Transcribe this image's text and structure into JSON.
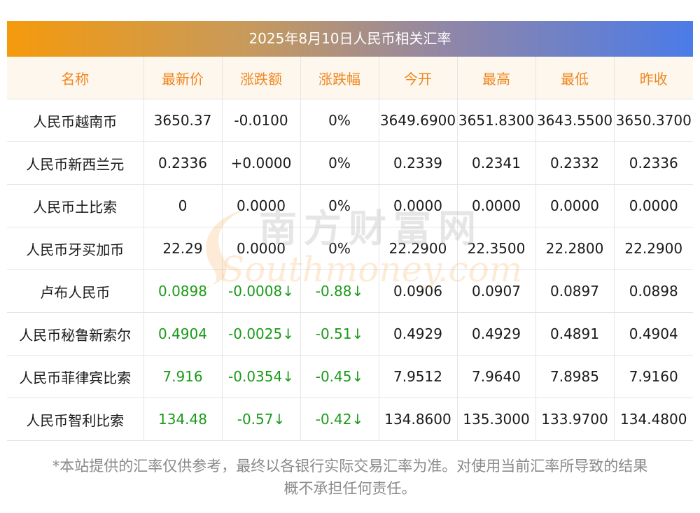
{
  "title": "2025年8月10日人民币相关汇率",
  "watermark": {
    "cn": "南方财富网",
    "en": "Southmoney.com"
  },
  "table": {
    "headers": [
      "名称",
      "最新价",
      "涨跌额",
      "涨跌幅",
      "今开",
      "最高",
      "最低",
      "昨收"
    ],
    "rows": [
      {
        "name": "人民币越南币",
        "latest": "3650.37",
        "change": "-0.0100",
        "change_pct": "0%",
        "open": "3649.6900",
        "high": "3651.8300",
        "low": "3643.5500",
        "prev_close": "3650.3700",
        "trend": "flat"
      },
      {
        "name": "人民币新西兰元",
        "latest": "0.2336",
        "change": "+0.0000",
        "change_pct": "0%",
        "open": "0.2339",
        "high": "0.2341",
        "low": "0.2332",
        "prev_close": "0.2336",
        "trend": "flat"
      },
      {
        "name": "人民币土比索",
        "latest": "0",
        "change": "0.0000",
        "change_pct": "0%",
        "open": "0.0000",
        "high": "0.0000",
        "low": "0.0000",
        "prev_close": "0.0000",
        "trend": "flat"
      },
      {
        "name": "人民币牙买加币",
        "latest": "22.29",
        "change": "0.0000",
        "change_pct": "0%",
        "open": "22.2900",
        "high": "22.3500",
        "low": "22.2800",
        "prev_close": "22.2900",
        "trend": "flat"
      },
      {
        "name": "卢布人民币",
        "latest": "0.0898",
        "change": "-0.0008↓",
        "change_pct": "-0.88↓",
        "open": "0.0906",
        "high": "0.0907",
        "low": "0.0897",
        "prev_close": "0.0898",
        "trend": "down"
      },
      {
        "name": "人民币秘鲁新索尔",
        "latest": "0.4904",
        "change": "-0.0025↓",
        "change_pct": "-0.51↓",
        "open": "0.4929",
        "high": "0.4929",
        "low": "0.4891",
        "prev_close": "0.4904",
        "trend": "down"
      },
      {
        "name": "人民币菲律宾比索",
        "latest": "7.916",
        "change": "-0.0354↓",
        "change_pct": "-0.45↓",
        "open": "7.9512",
        "high": "7.9640",
        "low": "7.8985",
        "prev_close": "7.9160",
        "trend": "down"
      },
      {
        "name": "人民币智利比索",
        "latest": "134.48",
        "change": "-0.57↓",
        "change_pct": "-0.42↓",
        "open": "134.8600",
        "high": "135.3000",
        "low": "133.9700",
        "prev_close": "134.4800",
        "trend": "down"
      }
    ]
  },
  "footnote": {
    "line1": "*本站提供的汇率仅供参考，最终以各银行实际交易汇率为准。对使用当前汇率所导致的结果",
    "line2": "概不承担任何责任。"
  },
  "colors": {
    "header_text": "#f0861d",
    "down": "#1a9a1a"
  }
}
